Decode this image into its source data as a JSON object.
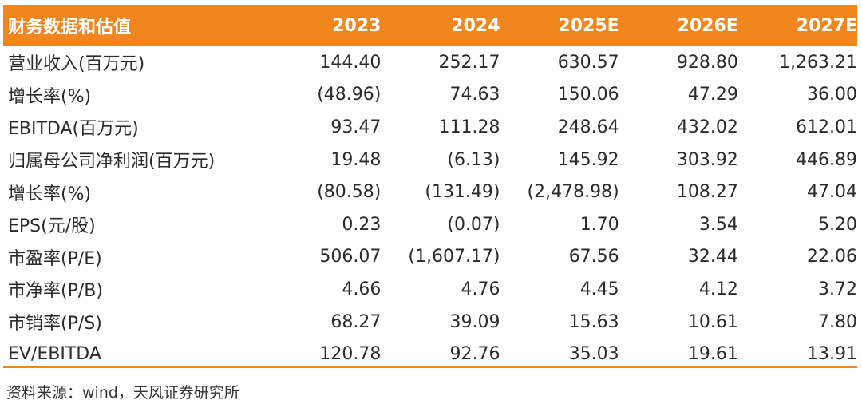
{
  "header": {
    "title": "财务数据和估值",
    "years": [
      "2023",
      "2024",
      "2025E",
      "2026E",
      "2027E"
    ]
  },
  "rows": [
    {
      "label": "营业收入(百万元)",
      "values": [
        "144.40",
        "252.17",
        "630.57",
        "928.80",
        "1,263.21"
      ]
    },
    {
      "label": "增长率(%)",
      "values": [
        "(48.96)",
        "74.63",
        "150.06",
        "47.29",
        "36.00"
      ]
    },
    {
      "label": "EBITDA(百万元)",
      "values": [
        "93.47",
        "111.28",
        "248.64",
        "432.02",
        "612.01"
      ]
    },
    {
      "label": "归属母公司净利润(百万元)",
      "values": [
        "19.48",
        "(6.13)",
        "145.92",
        "303.92",
        "446.89"
      ]
    },
    {
      "label": "增长率(%)",
      "values": [
        "(80.58)",
        "(131.49)",
        "(2,478.98)",
        "108.27",
        "47.04"
      ]
    },
    {
      "label": "EPS(元/股)",
      "values": [
        "0.23",
        "(0.07)",
        "1.70",
        "3.54",
        "5.20"
      ]
    },
    {
      "label": "市盈率(P/E)",
      "values": [
        "506.07",
        "(1,607.17)",
        "67.56",
        "32.44",
        "22.06"
      ]
    },
    {
      "label": "市净率(P/B)",
      "values": [
        "4.66",
        "4.76",
        "4.45",
        "4.12",
        "3.72"
      ]
    },
    {
      "label": "市销率(P/S)",
      "values": [
        "68.27",
        "39.09",
        "15.63",
        "10.61",
        "7.80"
      ]
    },
    {
      "label": "EV/EBITDA",
      "values": [
        "120.78",
        "92.76",
        "35.03",
        "19.61",
        "13.91"
      ]
    }
  ],
  "source": "资料来源：wind，天风证券研究所",
  "colors": {
    "accent": "#f2861e",
    "text": "#222222"
  }
}
